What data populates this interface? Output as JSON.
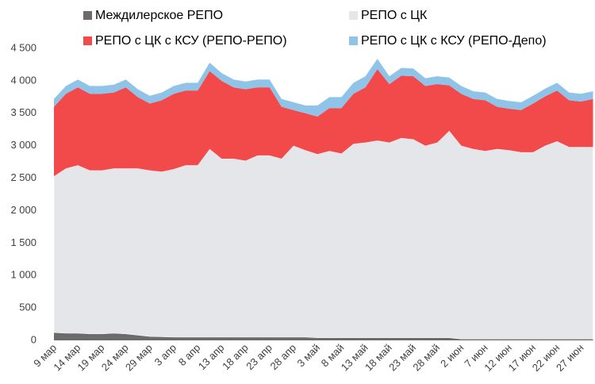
{
  "chart_data": {
    "type": "stacked_area",
    "categories": [
      "9 мар",
      null,
      "14 мар",
      null,
      "19 мар",
      null,
      "24 мар",
      null,
      "29 мар",
      null,
      "3 апр",
      null,
      "8 апр",
      null,
      "13 апр",
      null,
      "18 апр",
      null,
      "23 апр",
      null,
      "28 апр",
      null,
      "3 май",
      null,
      "8 май",
      null,
      "13 май",
      null,
      "18 май",
      null,
      "23 май",
      null,
      "28 май",
      null,
      "2 июн",
      null,
      "7 июн",
      null,
      "12 июн",
      null,
      "17 июн",
      null,
      "22 июн",
      null,
      "27 июн",
      null
    ],
    "series": [
      {
        "name": "Междилерское РЕПО",
        "color": "#6b6b6b",
        "values": [
          120,
          110,
          110,
          100,
          100,
          110,
          100,
          80,
          60,
          55,
          50,
          50,
          50,
          50,
          50,
          50,
          50,
          50,
          50,
          50,
          50,
          50,
          40,
          40,
          40,
          40,
          40,
          40,
          40,
          40,
          40,
          40,
          40,
          40,
          20,
          20,
          20,
          20,
          20,
          20,
          20,
          20,
          20,
          20,
          20,
          20
        ]
      },
      {
        "name": "РЕПО с ЦК",
        "color": "#e4e6e9",
        "values": [
          2410,
          2540,
          2590,
          2520,
          2520,
          2540,
          2550,
          2570,
          2560,
          2545,
          2590,
          2650,
          2650,
          2900,
          2750,
          2750,
          2720,
          2800,
          2800,
          2750,
          2950,
          2880,
          2830,
          2880,
          2840,
          2990,
          3010,
          3040,
          3010,
          3080,
          3060,
          2960,
          3010,
          3190,
          2980,
          2930,
          2900,
          2930,
          2910,
          2880,
          2880,
          2980,
          3050,
          2960,
          2960,
          2960
        ]
      },
      {
        "name": "РЕПО с ЦК с КСУ (РЕПО-РЕПО)",
        "color": "#f24a4a",
        "values": [
          1070,
          1150,
          1200,
          1180,
          1180,
          1170,
          1250,
          1100,
          1030,
          1100,
          1160,
          1150,
          1150,
          1200,
          1200,
          1100,
          1100,
          1050,
          1050,
          800,
          550,
          570,
          580,
          660,
          700,
          770,
          850,
          1100,
          900,
          960,
          970,
          920,
          900,
          700,
          800,
          770,
          780,
          650,
          640,
          650,
          750,
          760,
          780,
          720,
          700,
          740
        ]
      },
      {
        "name": "РЕПО с ЦК с КСУ (РЕПО-Депо)",
        "color": "#8fc3e8",
        "values": [
          120,
          120,
          120,
          120,
          120,
          120,
          120,
          120,
          120,
          120,
          120,
          120,
          120,
          130,
          120,
          120,
          120,
          120,
          120,
          120,
          120,
          120,
          170,
          170,
          170,
          170,
          170,
          160,
          120,
          120,
          120,
          120,
          120,
          120,
          120,
          120,
          120,
          120,
          120,
          120,
          120,
          120,
          120,
          120,
          120,
          120
        ]
      }
    ],
    "ylim": [
      0,
      4500
    ],
    "yticks": [
      0,
      500,
      {
        "value": 1000,
        "label": "1 000"
      },
      {
        "value": 1500,
        "label": "1 500"
      },
      {
        "value": 2000,
        "label": "2 000"
      },
      {
        "value": 2500,
        "label": "2 500"
      },
      {
        "value": 3000,
        "label": "3 000"
      },
      {
        "value": 3500,
        "label": "3 500"
      },
      {
        "value": 4000,
        "label": "4 000"
      },
      {
        "value": 4500,
        "label": "4 500"
      }
    ],
    "grid": false
  }
}
